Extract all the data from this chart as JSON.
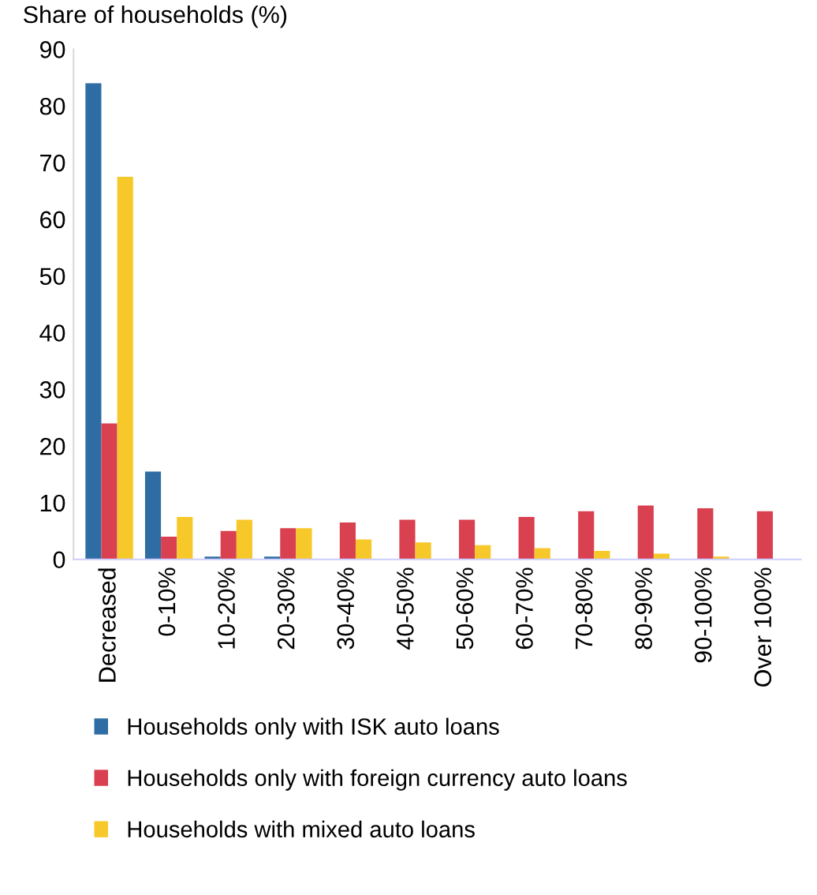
{
  "chart_data": {
    "type": "bar",
    "title": "Share of households (%)",
    "categories": [
      "Decreased",
      "0-10%",
      "10-20%",
      "20-30%",
      "30-40%",
      "40-50%",
      "50-60%",
      "60-70%",
      "70-80%",
      "80-90%",
      "90-100%",
      "Over 100%"
    ],
    "series": [
      {
        "name": "Households only with ISK auto loans",
        "color": "#2e6da4",
        "values": [
          84,
          15.5,
          0.5,
          0.5,
          0,
          0,
          0,
          0,
          0,
          0,
          0,
          0
        ]
      },
      {
        "name": "Households only with foreign currency auto loans",
        "color": "#d94050",
        "values": [
          24,
          4,
          5,
          5.5,
          6.5,
          7,
          7,
          7.5,
          8.5,
          9.5,
          9,
          8.5
        ]
      },
      {
        "name": "Households with mixed auto loans",
        "color": "#f7c82a",
        "values": [
          67.5,
          7.5,
          7,
          5.5,
          3.5,
          3,
          2.5,
          2,
          1.5,
          1,
          0.5,
          0
        ]
      }
    ],
    "ylim": [
      0,
      90
    ],
    "yticks": [
      0,
      10,
      20,
      30,
      40,
      50,
      60,
      70,
      80,
      90
    ],
    "grid": false,
    "legend": "bottom"
  }
}
